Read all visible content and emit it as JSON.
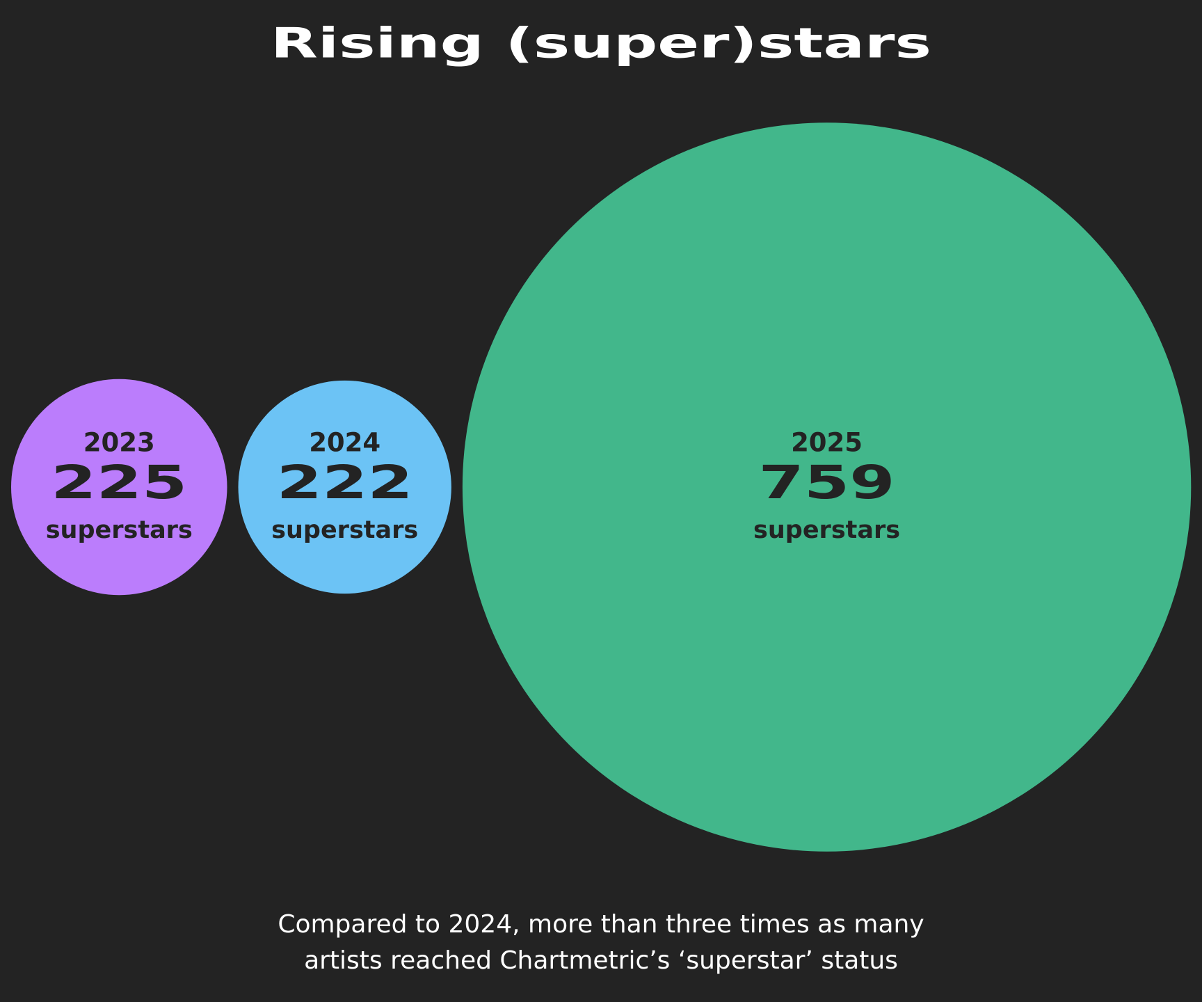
{
  "chart_data": {
    "type": "bubble",
    "title": "Rising (super)stars",
    "categories": [
      "2023",
      "2024",
      "2025"
    ],
    "values": [
      225,
      222,
      759
    ],
    "colors": [
      "#bb7dfc",
      "#6cc3f5",
      "#42b78b"
    ],
    "unit_label": "superstars",
    "caption": [
      "Compared to 2024, more than three times as many",
      "artists reached Chartmetric’s ‘superstar’ status"
    ]
  }
}
